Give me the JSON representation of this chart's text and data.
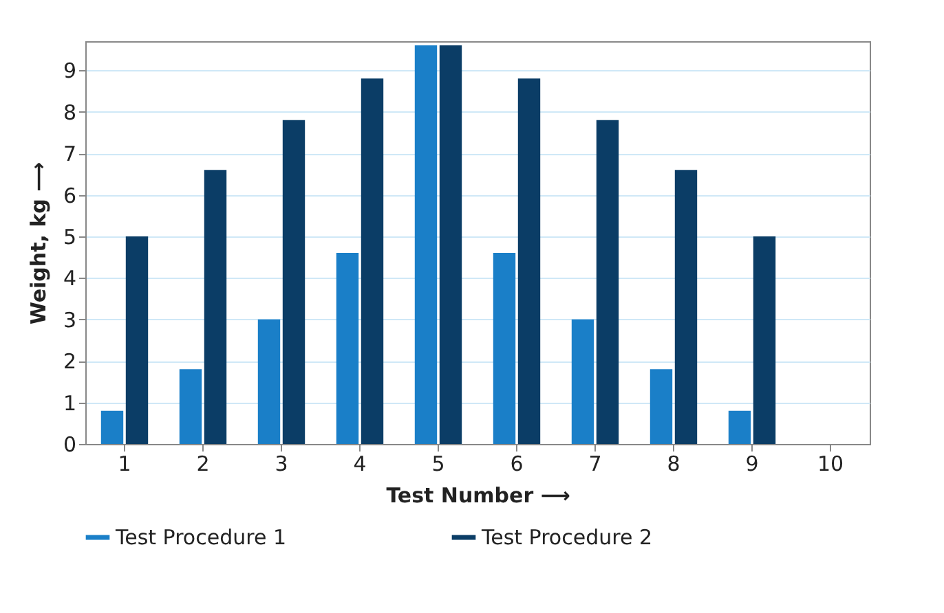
{
  "chart_data": {
    "type": "bar",
    "xlabel": "Test Number ⟶",
    "ylabel": "Weight, kg ⟶",
    "categories": [
      "1",
      "2",
      "3",
      "4",
      "5",
      "6",
      "7",
      "8",
      "9",
      "10"
    ],
    "series": [
      {
        "name": "Test Procedure 1",
        "color": "#1a7fc8",
        "values": [
          0.8,
          1.8,
          3.0,
          4.6,
          9.6,
          4.6,
          3.0,
          1.8,
          0.8,
          null
        ]
      },
      {
        "name": "Test Procedure 2",
        "color": "#0b3d66",
        "values": [
          5.0,
          6.6,
          7.8,
          8.8,
          9.6,
          8.8,
          7.8,
          6.6,
          5.0,
          null
        ]
      }
    ],
    "ylim": [
      0,
      9.7
    ],
    "yticks": [
      0,
      1,
      2,
      3,
      4,
      5,
      6,
      7,
      8,
      9
    ],
    "grid": "y",
    "legend": "bottom"
  }
}
